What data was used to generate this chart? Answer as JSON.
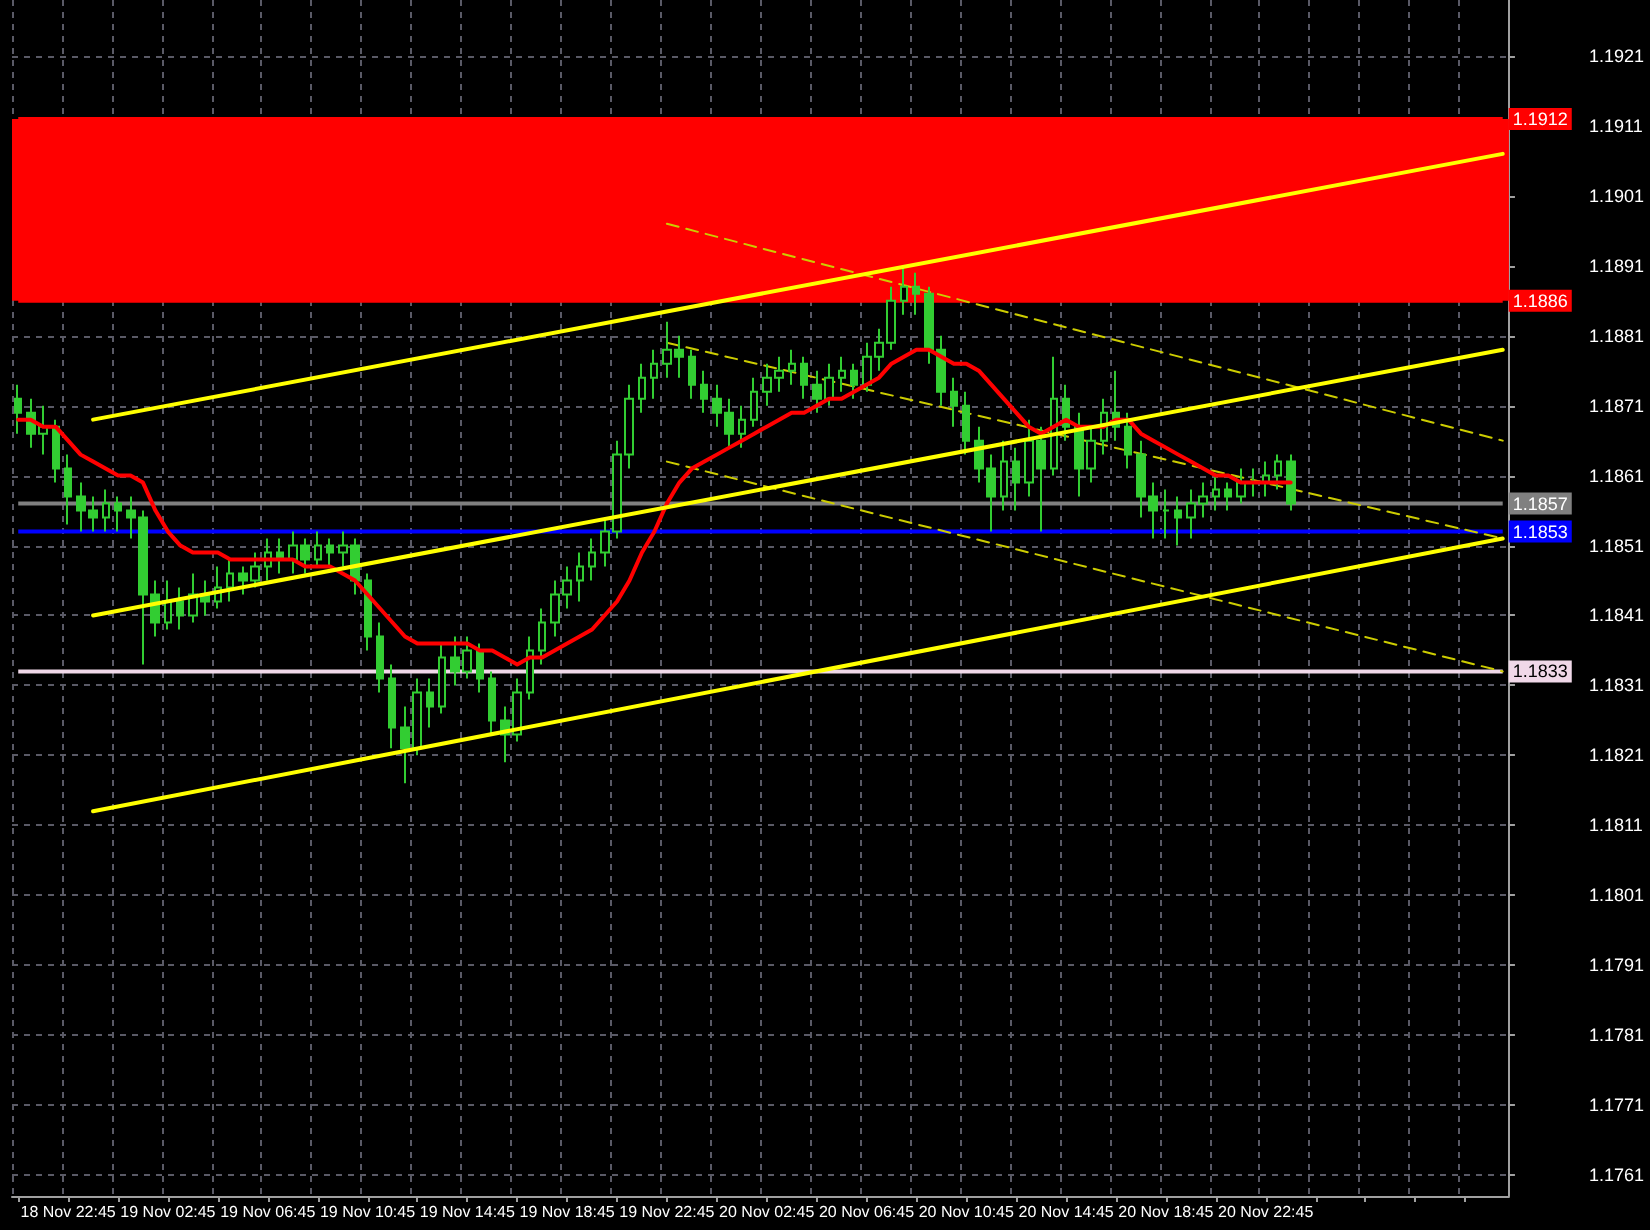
{
  "chart_data": {
    "type": "candlestick",
    "color": "#32cd32",
    "categories": [
      null,
      null,
      null,
      null,
      "18 Nov 22:45",
      null,
      null,
      null,
      null,
      null,
      null,
      null,
      "19 Nov 02:45",
      null,
      null,
      null,
      null,
      null,
      null,
      null,
      "19 Nov 06:45",
      null,
      null,
      null,
      null,
      null,
      null,
      null,
      "19 Nov 10:45",
      null,
      null,
      null,
      null,
      null,
      null,
      null,
      "19 Nov 14:45",
      null,
      null,
      null,
      null,
      null,
      null,
      null,
      "19 Nov 18:45",
      null,
      null,
      null,
      null,
      null,
      null,
      null,
      "19 Nov 22:45",
      null,
      null,
      null,
      null,
      null,
      null,
      null,
      "20 Nov 02:45",
      null,
      null,
      null,
      null,
      null,
      null,
      null,
      "20 Nov 06:45",
      null,
      null,
      null,
      null,
      null,
      null,
      null,
      "20 Nov 10:45",
      null,
      null,
      null,
      null,
      null,
      null,
      null,
      "20 Nov 14:45",
      null,
      null,
      null,
      null,
      null,
      null,
      null,
      "20 Nov 18:45",
      null,
      null,
      null,
      null,
      null,
      null,
      null,
      "20 Nov 22:45",
      null,
      null,
      null,
      null,
      null,
      null,
      null,
      null,
      null,
      null,
      null,
      null,
      null,
      null,
      null,
      null,
      null,
      null,
      null
    ],
    "ylim": [
      1.1758,
      1.1929
    ],
    "yticks": [
      1.1761,
      1.1771,
      1.1781,
      1.1791,
      1.1801,
      1.1811,
      1.1821,
      1.1831,
      1.1841,
      1.1851,
      1.1861,
      1.1871,
      1.1881,
      1.1891,
      1.1901,
      1.1911,
      1.1921
    ],
    "grid": true,
    "ohlc": [
      [
        1.1872,
        1.1874,
        1.1867,
        1.187
      ],
      [
        1.187,
        1.1872,
        1.1865,
        1.1867
      ],
      [
        1.1867,
        1.1871,
        1.1864,
        1.1868
      ],
      [
        1.1868,
        1.1869,
        1.186,
        1.1862
      ],
      [
        1.1862,
        1.1864,
        1.1854,
        1.1858
      ],
      [
        1.1858,
        1.186,
        1.1853,
        1.1856
      ],
      [
        1.1856,
        1.1858,
        1.1853,
        1.1855
      ],
      [
        1.1855,
        1.1859,
        1.1853,
        1.1857
      ],
      [
        1.1857,
        1.1858,
        1.1853,
        1.1856
      ],
      [
        1.1856,
        1.1858,
        1.1852,
        1.1855
      ],
      [
        1.1855,
        1.1856,
        1.1834,
        1.1844
      ],
      [
        1.1844,
        1.1846,
        1.1838,
        1.184
      ],
      [
        1.184,
        1.1846,
        1.1839,
        1.1843
      ],
      [
        1.1843,
        1.1845,
        1.1839,
        1.1841
      ],
      [
        1.1841,
        1.1847,
        1.184,
        1.1844
      ],
      [
        1.1844,
        1.1846,
        1.1841,
        1.1843
      ],
      [
        1.1843,
        1.1848,
        1.1842,
        1.1845
      ],
      [
        1.1845,
        1.1849,
        1.1843,
        1.1847
      ],
      [
        1.1847,
        1.1848,
        1.1844,
        1.1846
      ],
      [
        1.1846,
        1.185,
        1.1845,
        1.1848
      ],
      [
        1.1848,
        1.1852,
        1.1846,
        1.185
      ],
      [
        1.185,
        1.1852,
        1.1847,
        1.1849
      ],
      [
        1.1849,
        1.1853,
        1.1847,
        1.1851
      ],
      [
        1.1851,
        1.1852,
        1.1847,
        1.1849
      ],
      [
        1.1849,
        1.1853,
        1.1848,
        1.1851
      ],
      [
        1.1851,
        1.1852,
        1.1848,
        1.185
      ],
      [
        1.185,
        1.1853,
        1.1848,
        1.1851
      ],
      [
        1.1851,
        1.1852,
        1.1844,
        1.1846
      ],
      [
        1.1846,
        1.1847,
        1.1836,
        1.1838
      ],
      [
        1.1838,
        1.184,
        1.183,
        1.1832
      ],
      [
        1.1832,
        1.1834,
        1.1822,
        1.1825
      ],
      [
        1.1825,
        1.1828,
        1.1817,
        1.1822
      ],
      [
        1.1822,
        1.1832,
        1.1821,
        1.183
      ],
      [
        1.183,
        1.1832,
        1.1825,
        1.1828
      ],
      [
        1.1828,
        1.1837,
        1.1827,
        1.1835
      ],
      [
        1.1835,
        1.1838,
        1.1831,
        1.1833
      ],
      [
        1.1833,
        1.1838,
        1.1832,
        1.1836
      ],
      [
        1.1836,
        1.1837,
        1.183,
        1.1832
      ],
      [
        1.1832,
        1.1833,
        1.1824,
        1.1826
      ],
      [
        1.1826,
        1.1828,
        1.182,
        1.1824
      ],
      [
        1.1824,
        1.1832,
        1.1823,
        1.183
      ],
      [
        1.183,
        1.1838,
        1.1829,
        1.1836
      ],
      [
        1.1836,
        1.1842,
        1.1834,
        1.184
      ],
      [
        1.184,
        1.1846,
        1.1838,
        1.1844
      ],
      [
        1.1844,
        1.1848,
        1.1842,
        1.1846
      ],
      [
        1.1846,
        1.185,
        1.1843,
        1.1848
      ],
      [
        1.1848,
        1.1852,
        1.1846,
        1.185
      ],
      [
        1.185,
        1.1855,
        1.1848,
        1.1853
      ],
      [
        1.1853,
        1.1866,
        1.1852,
        1.1864
      ],
      [
        1.1864,
        1.1874,
        1.1862,
        1.1872
      ],
      [
        1.1872,
        1.1877,
        1.187,
        1.1875
      ],
      [
        1.1875,
        1.1879,
        1.1872,
        1.1877
      ],
      [
        1.1877,
        1.1883,
        1.1875,
        1.1879
      ],
      [
        1.1879,
        1.1881,
        1.1875,
        1.1878
      ],
      [
        1.1878,
        1.1879,
        1.1872,
        1.1874
      ],
      [
        1.1874,
        1.1876,
        1.187,
        1.1872
      ],
      [
        1.1872,
        1.1874,
        1.1868,
        1.187
      ],
      [
        1.187,
        1.1872,
        1.1865,
        1.1867
      ],
      [
        1.1867,
        1.1871,
        1.1865,
        1.1869
      ],
      [
        1.1869,
        1.1875,
        1.1868,
        1.1873
      ],
      [
        1.1873,
        1.1877,
        1.1871,
        1.1875
      ],
      [
        1.1875,
        1.1878,
        1.1873,
        1.1876
      ],
      [
        1.1876,
        1.1879,
        1.1874,
        1.1877
      ],
      [
        1.1877,
        1.1878,
        1.1872,
        1.1874
      ],
      [
        1.1874,
        1.1876,
        1.187,
        1.1872
      ],
      [
        1.1872,
        1.1877,
        1.1871,
        1.1875
      ],
      [
        1.1875,
        1.1878,
        1.1873,
        1.1876
      ],
      [
        1.1876,
        1.1877,
        1.1872,
        1.1874
      ],
      [
        1.1874,
        1.188,
        1.1873,
        1.1878
      ],
      [
        1.1878,
        1.1882,
        1.1876,
        1.188
      ],
      [
        1.188,
        1.1888,
        1.1879,
        1.1886
      ],
      [
        1.1886,
        1.1891,
        1.1884,
        1.1888
      ],
      [
        1.1888,
        1.189,
        1.1884,
        1.1887
      ],
      [
        1.1887,
        1.1888,
        1.1877,
        1.1879
      ],
      [
        1.1879,
        1.1881,
        1.1871,
        1.1873
      ],
      [
        1.1873,
        1.1875,
        1.1868,
        1.1871
      ],
      [
        1.1871,
        1.1873,
        1.1864,
        1.1866
      ],
      [
        1.1866,
        1.1868,
        1.186,
        1.1862
      ],
      [
        1.1862,
        1.1864,
        1.1853,
        1.1858
      ],
      [
        1.1858,
        1.1866,
        1.1856,
        1.1863
      ],
      [
        1.1863,
        1.1865,
        1.1856,
        1.186
      ],
      [
        1.186,
        1.1869,
        1.1858,
        1.1866
      ],
      [
        1.1866,
        1.1868,
        1.1853,
        1.1862
      ],
      [
        1.1862,
        1.1878,
        1.1861,
        1.1872
      ],
      [
        1.1872,
        1.1874,
        1.1866,
        1.1868
      ],
      [
        1.1868,
        1.187,
        1.1858,
        1.1862
      ],
      [
        1.1862,
        1.1868,
        1.186,
        1.1866
      ],
      [
        1.1866,
        1.1872,
        1.1864,
        1.187
      ],
      [
        1.187,
        1.1876,
        1.1866,
        1.1868
      ],
      [
        1.1868,
        1.187,
        1.1862,
        1.1864
      ],
      [
        1.1864,
        1.1866,
        1.1855,
        1.1858
      ],
      [
        1.1858,
        1.186,
        1.1852,
        1.1856
      ],
      [
        1.1856,
        1.1859,
        1.1852,
        1.1856
      ],
      [
        1.1856,
        1.1858,
        1.1851,
        1.1855
      ],
      [
        1.1855,
        1.1859,
        1.1852,
        1.1857
      ],
      [
        1.1857,
        1.186,
        1.1855,
        1.1858
      ],
      [
        1.1858,
        1.1861,
        1.1856,
        1.1859
      ],
      [
        1.1859,
        1.186,
        1.1856,
        1.1858
      ],
      [
        1.1858,
        1.1862,
        1.1857,
        1.186
      ],
      [
        1.186,
        1.1862,
        1.1858,
        1.186
      ],
      [
        1.186,
        1.1863,
        1.1858,
        1.1861
      ],
      [
        1.1861,
        1.1864,
        1.1859,
        1.1863
      ],
      [
        1.1863,
        1.1864,
        1.1856,
        1.1857
      ],
      null,
      null,
      null,
      null,
      null,
      null,
      null,
      null,
      null,
      null,
      null,
      null,
      null,
      null,
      null,
      null,
      null
    ],
    "series": [
      {
        "type": "line",
        "color": "#ff0000",
        "marker": "none",
        "line_style": "solid",
        "values": [
          1.1869,
          1.1869,
          1.1868,
          1.1868,
          1.1866,
          1.1864,
          1.1863,
          1.1862,
          1.1861,
          1.1861,
          1.186,
          1.1856,
          1.1853,
          1.1851,
          1.185,
          1.185,
          1.185,
          1.1849,
          1.1849,
          1.1849,
          1.1849,
          1.1849,
          1.1849,
          1.1848,
          1.1848,
          1.1848,
          1.1847,
          1.1846,
          1.1844,
          1.1842,
          1.184,
          1.1838,
          1.1837,
          1.1837,
          1.1837,
          1.1837,
          1.1837,
          1.1836,
          1.1836,
          1.1835,
          1.1834,
          1.1835,
          1.1835,
          1.1836,
          1.1837,
          1.1838,
          1.1839,
          1.1841,
          1.1843,
          1.1846,
          1.185,
          1.1853,
          1.1857,
          1.186,
          1.1862,
          1.1863,
          1.1864,
          1.1865,
          1.1866,
          1.1867,
          1.1868,
          1.1869,
          1.187,
          1.187,
          1.1871,
          1.1872,
          1.1872,
          1.1873,
          1.1874,
          1.1875,
          1.1877,
          1.1878,
          1.1879,
          1.1879,
          1.1878,
          1.1877,
          1.1877,
          1.1876,
          1.1874,
          1.1872,
          1.187,
          1.1868,
          1.1867,
          1.1868,
          1.1869,
          1.1868,
          1.1868,
          1.1868,
          1.1869,
          1.1869,
          1.1867,
          1.1866,
          1.1865,
          1.1864,
          1.1863,
          1.1862,
          1.1861,
          1.1861,
          1.186,
          1.186,
          1.186,
          1.186,
          1.186,
          null,
          null,
          null,
          null,
          null,
          null,
          null,
          null,
          null,
          null,
          null,
          null,
          null,
          null,
          null,
          null,
          null
        ]
      },
      {
        "type": "line",
        "color": "#ffff00",
        "marker": "none",
        "line_style": "solid",
        "values": [
          null,
          null,
          null,
          null,
          null,
          null,
          1.1869,
          null,
          null,
          null,
          null,
          null,
          null,
          null,
          null,
          null,
          null,
          null,
          null,
          null,
          null,
          null,
          null,
          null,
          null,
          null,
          null,
          null,
          null,
          null,
          null,
          null,
          null,
          null,
          null,
          null,
          null,
          null,
          null,
          null,
          null,
          null,
          null,
          null,
          null,
          null,
          null,
          null,
          null,
          null,
          null,
          null,
          null,
          null,
          null,
          null,
          null,
          null,
          null,
          null,
          null,
          null,
          null,
          null,
          null,
          null,
          null,
          null,
          null,
          null,
          null,
          null,
          null,
          null,
          null,
          null,
          null,
          null,
          null,
          null,
          null,
          null,
          null,
          null,
          null,
          null,
          null,
          null,
          null,
          null,
          null,
          null,
          null,
          null,
          null,
          null,
          null,
          null,
          null,
          null,
          null,
          null,
          null,
          null,
          null,
          null,
          null,
          null,
          null,
          null,
          null,
          null,
          null,
          null,
          null,
          null,
          null,
          null,
          null,
          1.1907
        ]
      },
      {
        "type": "line",
        "color": "#ffff00",
        "marker": "none",
        "line_style": "solid",
        "values": [
          null,
          null,
          null,
          null,
          null,
          null,
          1.1841,
          null,
          null,
          null,
          null,
          null,
          null,
          null,
          null,
          null,
          null,
          null,
          null,
          null,
          null,
          null,
          null,
          null,
          null,
          null,
          null,
          null,
          null,
          null,
          null,
          null,
          null,
          null,
          null,
          null,
          null,
          null,
          null,
          null,
          null,
          null,
          null,
          null,
          null,
          null,
          null,
          null,
          null,
          null,
          null,
          null,
          null,
          null,
          null,
          null,
          null,
          null,
          null,
          null,
          null,
          null,
          null,
          null,
          null,
          null,
          null,
          null,
          null,
          null,
          null,
          null,
          null,
          null,
          null,
          null,
          null,
          null,
          null,
          null,
          null,
          null,
          null,
          null,
          null,
          null,
          null,
          null,
          null,
          null,
          null,
          null,
          null,
          null,
          null,
          null,
          null,
          null,
          null,
          null,
          null,
          null,
          null,
          null,
          null,
          null,
          null,
          null,
          null,
          null,
          null,
          null,
          null,
          null,
          null,
          null,
          null,
          null,
          null,
          1.1879
        ]
      },
      {
        "type": "line",
        "color": "#ffff00",
        "marker": "none",
        "line_style": "solid",
        "values": [
          null,
          null,
          null,
          null,
          null,
          null,
          1.1813,
          null,
          null,
          null,
          null,
          null,
          null,
          null,
          null,
          null,
          null,
          null,
          null,
          null,
          null,
          null,
          null,
          null,
          null,
          null,
          null,
          null,
          null,
          null,
          null,
          null,
          null,
          null,
          null,
          null,
          null,
          null,
          null,
          null,
          null,
          null,
          null,
          null,
          null,
          null,
          null,
          null,
          null,
          null,
          null,
          null,
          null,
          null,
          null,
          null,
          null,
          null,
          null,
          null,
          null,
          null,
          null,
          null,
          null,
          null,
          null,
          null,
          null,
          null,
          null,
          null,
          null,
          null,
          null,
          null,
          null,
          null,
          null,
          null,
          null,
          null,
          null,
          null,
          null,
          null,
          null,
          null,
          null,
          null,
          null,
          null,
          null,
          null,
          null,
          null,
          null,
          null,
          null,
          null,
          null,
          null,
          null,
          null,
          null,
          null,
          null,
          null,
          null,
          null,
          null,
          null,
          null,
          null,
          null,
          null,
          null,
          null,
          null,
          1.1852
        ]
      },
      {
        "type": "line",
        "color": "#cccc00",
        "marker": "none",
        "line_style": "dashed",
        "values": [
          null,
          null,
          null,
          null,
          null,
          null,
          null,
          null,
          null,
          null,
          null,
          null,
          null,
          null,
          null,
          null,
          null,
          null,
          null,
          null,
          null,
          null,
          null,
          null,
          null,
          null,
          null,
          null,
          null,
          null,
          null,
          null,
          null,
          null,
          null,
          null,
          null,
          null,
          null,
          null,
          null,
          null,
          null,
          null,
          null,
          null,
          null,
          null,
          null,
          null,
          null,
          null,
          1.1897,
          null,
          null,
          null,
          null,
          null,
          null,
          null,
          null,
          null,
          null,
          null,
          null,
          null,
          null,
          null,
          null,
          null,
          null,
          null,
          null,
          null,
          null,
          null,
          null,
          null,
          null,
          null,
          null,
          null,
          null,
          null,
          null,
          null,
          null,
          null,
          null,
          null,
          null,
          null,
          null,
          null,
          null,
          null,
          null,
          null,
          null,
          null,
          null,
          null,
          null,
          null,
          null,
          null,
          null,
          null,
          null,
          null,
          null,
          null,
          null,
          null,
          null,
          null,
          null,
          null,
          null,
          1.1866
        ]
      },
      {
        "type": "line",
        "color": "#cccc00",
        "marker": "none",
        "line_style": "dashed",
        "values": [
          null,
          null,
          null,
          null,
          null,
          null,
          null,
          null,
          null,
          null,
          null,
          null,
          null,
          null,
          null,
          null,
          null,
          null,
          null,
          null,
          null,
          null,
          null,
          null,
          null,
          null,
          null,
          null,
          null,
          null,
          null,
          null,
          null,
          null,
          null,
          null,
          null,
          null,
          null,
          null,
          null,
          null,
          null,
          null,
          null,
          null,
          null,
          null,
          null,
          null,
          null,
          null,
          1.188,
          null,
          null,
          null,
          null,
          null,
          null,
          null,
          null,
          null,
          null,
          null,
          null,
          null,
          null,
          null,
          null,
          null,
          null,
          null,
          null,
          null,
          null,
          null,
          null,
          null,
          null,
          null,
          null,
          null,
          null,
          null,
          null,
          null,
          null,
          null,
          null,
          null,
          null,
          null,
          null,
          null,
          null,
          null,
          null,
          null,
          null,
          null,
          null,
          null,
          null,
          null,
          null,
          null,
          null,
          null,
          null,
          null,
          null,
          null,
          null,
          null,
          null,
          null,
          null,
          null,
          null,
          1.1852
        ]
      },
      {
        "type": "line",
        "color": "#cccc00",
        "marker": "none",
        "line_style": "dashed",
        "values": [
          null,
          null,
          null,
          null,
          null,
          null,
          null,
          null,
          null,
          null,
          null,
          null,
          null,
          null,
          null,
          null,
          null,
          null,
          null,
          null,
          null,
          null,
          null,
          null,
          null,
          null,
          null,
          null,
          null,
          null,
          null,
          null,
          null,
          null,
          null,
          null,
          null,
          null,
          null,
          null,
          null,
          null,
          null,
          null,
          null,
          null,
          null,
          null,
          null,
          null,
          null,
          null,
          1.1863,
          null,
          null,
          null,
          null,
          null,
          null,
          null,
          null,
          null,
          null,
          null,
          null,
          null,
          null,
          null,
          null,
          null,
          null,
          null,
          null,
          null,
          null,
          null,
          null,
          null,
          null,
          null,
          null,
          null,
          null,
          null,
          null,
          null,
          null,
          null,
          null,
          null,
          null,
          null,
          null,
          null,
          null,
          null,
          null,
          null,
          null,
          null,
          null,
          null,
          null,
          null,
          null,
          null,
          null,
          null,
          null,
          null,
          null,
          null,
          null,
          null,
          null,
          null,
          null,
          null,
          null,
          1.1833
        ]
      }
    ],
    "bands": [
      {
        "axis": "y",
        "from": 1.1886,
        "to": 1.1912,
        "color": "#ff0000"
      }
    ],
    "ref_lines": [
      {
        "axis": "y",
        "value": 1.1912,
        "label": "1.1912",
        "color": "#ff0000"
      },
      {
        "axis": "y",
        "value": 1.1886,
        "label": "1.1886",
        "color": "#ff0000"
      },
      {
        "axis": "y",
        "value": 1.1857,
        "label": "1.1857",
        "color": "#808080"
      },
      {
        "axis": "y",
        "value": 1.1853,
        "label": "1.1853",
        "color": "#0000ff"
      },
      {
        "axis": "y",
        "value": 1.1833,
        "label": "1.1833",
        "color": "#f0d8e8"
      }
    ]
  }
}
